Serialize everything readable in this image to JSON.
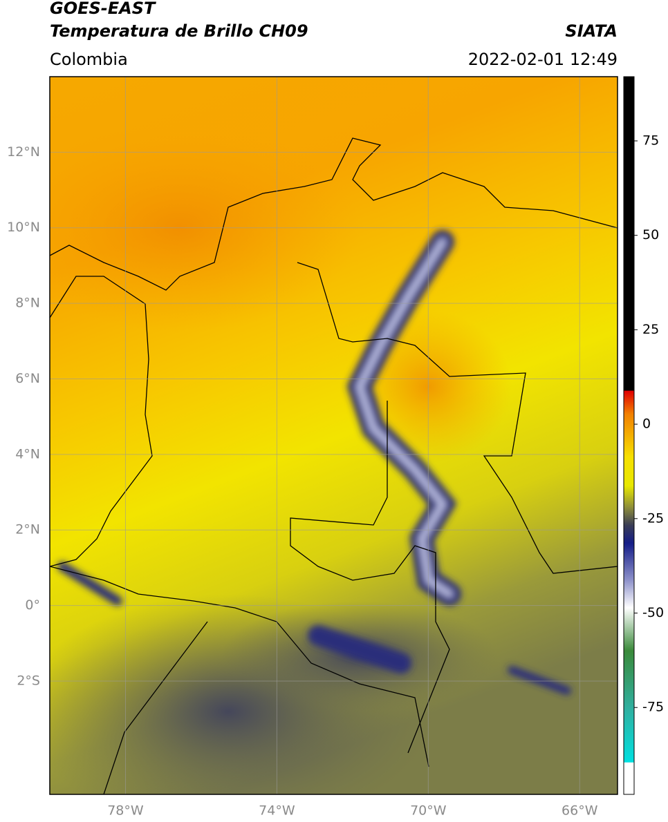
{
  "header": {
    "satellite": "GOES-EAST",
    "product": "Temperatura de Brillo CH09",
    "source": "SIATA",
    "region": "Colombia",
    "datetime": "2022-02-01 12:49"
  },
  "map": {
    "lonlim": [
      -80,
      -65
    ],
    "latlim": [
      -5,
      14
    ],
    "lonticks": [
      {
        "value": -78,
        "label": "78°W"
      },
      {
        "value": -74,
        "label": "74°W"
      },
      {
        "value": -70,
        "label": "70°W"
      },
      {
        "value": -66,
        "label": "66°W"
      }
    ],
    "latticks": [
      {
        "value": 12,
        "label": "12°N"
      },
      {
        "value": 10,
        "label": "10°N"
      },
      {
        "value": 8,
        "label": "8°N"
      },
      {
        "value": 6,
        "label": "6°N"
      },
      {
        "value": 4,
        "label": "4°N"
      },
      {
        "value": 2,
        "label": "2°N"
      },
      {
        "value": 0,
        "label": "0°"
      },
      {
        "value": -2,
        "label": "2°S"
      }
    ],
    "grid": true
  },
  "colorbar": {
    "lim": [
      -98,
      92
    ],
    "ticks": [
      75,
      50,
      25,
      0,
      -25,
      -50,
      -75
    ]
  }
}
